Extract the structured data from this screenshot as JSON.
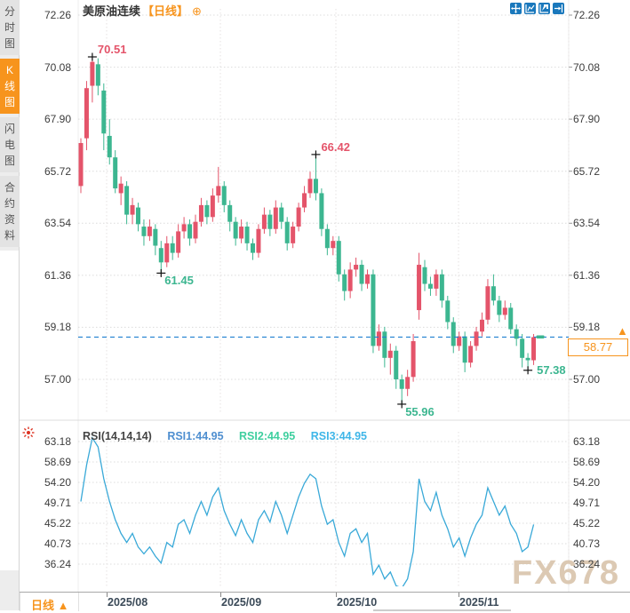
{
  "sidebar": {
    "tabs": [
      {
        "label": "分时图",
        "active": false
      },
      {
        "label": "K线图",
        "active": true
      },
      {
        "label": "闪电图",
        "active": false
      },
      {
        "label": "合约资料",
        "active": false
      }
    ]
  },
  "header": {
    "symbol": "美原油连续",
    "period_tag": "【日线】",
    "expand_icon": "⊕"
  },
  "toolbar": {
    "icons": [
      "pan-move-icon",
      "axis-range-icon",
      "axis-scale-icon",
      "exit-right-icon"
    ]
  },
  "rsi": {
    "params_label": "RSI(14,14,14)",
    "r1_label": "RSI1:44.95",
    "r2_label": "RSI2:44.95",
    "r3_label": "RSI3:44.95"
  },
  "price_box": {
    "value": "58.77"
  },
  "price_arrow": "▲",
  "xaxis": {
    "period_label": "日线 ▲",
    "labels": [
      "2025/08",
      "2025/09",
      "2025/10",
      "2025/11"
    ]
  },
  "watermark": {
    "text": "FX678"
  },
  "colors": {
    "up": "#e4546a",
    "down": "#3cb690",
    "rsi_line": "#39a9d8",
    "rsi1_label": "#4f8fd0",
    "rsi2_label": "#3fcf9f",
    "rsi3_label": "#3fb6e8",
    "accent_orange": "#f7941d",
    "dashed_line": "#2080d0",
    "toolbar_blue": "#1a78bc",
    "watermark": "#d9c4ab",
    "grid": "#dcdcdc"
  },
  "chart_data": {
    "type": "candlestick",
    "title": "美原油连续 日线",
    "main": {
      "y_axis_labels": [
        "72.26",
        "70.08",
        "67.90",
        "65.72",
        "63.54",
        "61.36",
        "59.18",
        "57.00"
      ],
      "ylim": [
        55.8,
        72.5
      ],
      "current_price": 58.77,
      "candles_ohlc": [
        [
          65.1,
          67.1,
          64.8,
          66.9
        ],
        [
          67.1,
          69.5,
          66.6,
          69.2
        ],
        [
          69.3,
          70.51,
          68.6,
          70.3
        ],
        [
          70.2,
          70.45,
          68.9,
          69.3
        ],
        [
          69.1,
          69.4,
          66.6,
          67.3
        ],
        [
          67.2,
          67.9,
          66.0,
          66.3
        ],
        [
          66.3,
          66.6,
          64.8,
          65.0
        ],
        [
          64.8,
          65.5,
          64.3,
          65.2
        ],
        [
          65.1,
          65.3,
          63.5,
          63.9
        ],
        [
          63.9,
          64.6,
          63.5,
          64.3
        ],
        [
          64.2,
          64.4,
          63.2,
          63.5
        ],
        [
          63.4,
          63.7,
          62.6,
          63.0
        ],
        [
          63.0,
          63.7,
          62.8,
          63.4
        ],
        [
          63.3,
          63.5,
          62.2,
          62.6
        ],
        [
          62.5,
          62.8,
          61.45,
          61.9
        ],
        [
          61.9,
          63.0,
          61.7,
          62.7
        ],
        [
          62.7,
          63.0,
          62.0,
          62.3
        ],
        [
          62.3,
          63.5,
          62.1,
          63.2
        ],
        [
          63.2,
          63.8,
          62.9,
          63.5
        ],
        [
          63.5,
          63.7,
          62.6,
          62.9
        ],
        [
          62.9,
          63.9,
          62.7,
          63.6
        ],
        [
          63.6,
          64.6,
          63.4,
          64.3
        ],
        [
          64.3,
          64.5,
          63.5,
          63.8
        ],
        [
          63.8,
          65.0,
          63.6,
          64.7
        ],
        [
          64.7,
          65.9,
          64.4,
          65.1
        ],
        [
          65.1,
          65.3,
          64.0,
          64.3
        ],
        [
          64.3,
          64.5,
          63.2,
          63.6
        ],
        [
          63.6,
          63.8,
          62.6,
          62.9
        ],
        [
          62.9,
          63.7,
          62.7,
          63.4
        ],
        [
          63.4,
          63.6,
          62.4,
          62.7
        ],
        [
          62.7,
          62.9,
          62.0,
          62.3
        ],
        [
          62.3,
          63.5,
          62.1,
          63.3
        ],
        [
          63.3,
          64.2,
          63.1,
          63.9
        ],
        [
          63.9,
          64.1,
          63.0,
          63.3
        ],
        [
          63.3,
          64.5,
          63.1,
          64.2
        ],
        [
          64.2,
          64.4,
          63.3,
          63.6
        ],
        [
          63.6,
          63.8,
          62.4,
          62.7
        ],
        [
          62.7,
          63.6,
          62.5,
          63.4
        ],
        [
          63.4,
          64.4,
          63.2,
          64.2
        ],
        [
          64.2,
          65.1,
          64.0,
          64.8
        ],
        [
          64.8,
          65.7,
          64.6,
          65.4
        ],
        [
          65.4,
          66.42,
          64.5,
          64.8
        ],
        [
          64.8,
          65.0,
          63.0,
          63.3
        ],
        [
          63.3,
          63.5,
          62.2,
          62.5
        ],
        [
          62.5,
          63.0,
          62.2,
          62.8
        ],
        [
          62.8,
          63.0,
          61.1,
          61.4
        ],
        [
          61.4,
          61.6,
          60.3,
          60.7
        ],
        [
          60.7,
          61.9,
          60.4,
          61.6
        ],
        [
          61.6,
          62.1,
          61.3,
          61.8
        ],
        [
          61.8,
          62.0,
          60.7,
          61.0
        ],
        [
          61.0,
          61.6,
          60.8,
          61.4
        ],
        [
          61.4,
          61.6,
          58.1,
          58.4
        ],
        [
          58.4,
          59.3,
          58.2,
          59.0
        ],
        [
          59.0,
          59.2,
          57.5,
          57.9
        ],
        [
          57.9,
          58.5,
          57.2,
          58.2
        ],
        [
          58.2,
          58.4,
          56.6,
          57.0
        ],
        [
          57.0,
          57.2,
          55.96,
          56.6
        ],
        [
          56.6,
          57.4,
          56.3,
          57.1
        ],
        [
          57.1,
          58.9,
          56.9,
          58.6
        ],
        [
          59.9,
          62.3,
          59.5,
          61.8
        ],
        [
          61.7,
          62.0,
          60.7,
          61.0
        ],
        [
          61.0,
          61.3,
          60.5,
          60.8
        ],
        [
          60.8,
          61.6,
          60.5,
          61.4
        ],
        [
          61.4,
          61.6,
          60.0,
          60.3
        ],
        [
          60.3,
          60.5,
          59.1,
          59.4
        ],
        [
          59.4,
          59.6,
          58.1,
          58.4
        ],
        [
          58.4,
          59.0,
          58.2,
          58.8
        ],
        [
          58.8,
          59.0,
          57.3,
          57.7
        ],
        [
          57.7,
          58.6,
          57.5,
          58.4
        ],
        [
          58.4,
          59.2,
          58.2,
          59.0
        ],
        [
          59.0,
          59.8,
          58.8,
          59.5
        ],
        [
          59.5,
          61.2,
          59.3,
          60.9
        ],
        [
          60.9,
          61.4,
          60.1,
          60.3
        ],
        [
          60.3,
          60.5,
          59.4,
          59.7
        ],
        [
          59.7,
          60.3,
          59.5,
          60.0
        ],
        [
          60.0,
          60.2,
          58.9,
          59.1
        ],
        [
          59.1,
          59.3,
          58.4,
          58.7
        ],
        [
          58.7,
          58.9,
          57.5,
          57.9
        ],
        [
          57.9,
          58.1,
          57.38,
          57.8
        ],
        [
          57.8,
          58.9,
          57.6,
          58.77
        ]
      ],
      "annotations": [
        {
          "text": "70.51",
          "price": 70.51,
          "candle_index": 2,
          "kind": "high"
        },
        {
          "text": "66.42",
          "price": 66.42,
          "candle_index": 41,
          "kind": "high"
        },
        {
          "text": "61.45",
          "price": 61.45,
          "candle_index": 14,
          "kind": "low"
        },
        {
          "text": "55.96",
          "price": 55.96,
          "candle_index": 56,
          "kind": "low"
        },
        {
          "text": "57.38",
          "price": 57.38,
          "candle_index": 78,
          "kind": "low-right"
        }
      ]
    },
    "rsi_panel": {
      "y_axis_labels": [
        "63.18",
        "58.69",
        "54.20",
        "49.71",
        "45.22",
        "40.73",
        "36.24"
      ],
      "values": [
        50,
        58,
        64,
        62,
        55,
        50,
        46,
        43,
        41,
        43,
        40,
        38.5,
        40,
        38,
        36.5,
        41,
        40,
        45,
        46,
        43,
        47,
        50,
        47,
        51,
        53,
        48,
        45,
        42.5,
        46,
        43,
        41,
        46,
        48,
        45.5,
        50,
        47,
        43,
        47,
        51,
        54,
        56,
        55,
        49,
        45,
        46,
        41,
        38,
        43,
        44,
        41,
        43,
        34,
        36,
        33,
        34.5,
        31.5,
        30.5,
        33,
        39,
        55,
        50,
        48,
        52,
        47,
        44,
        40,
        42,
        38,
        42,
        45,
        47,
        53,
        50,
        47,
        49,
        45,
        43,
        39,
        40,
        44.95
      ]
    }
  }
}
